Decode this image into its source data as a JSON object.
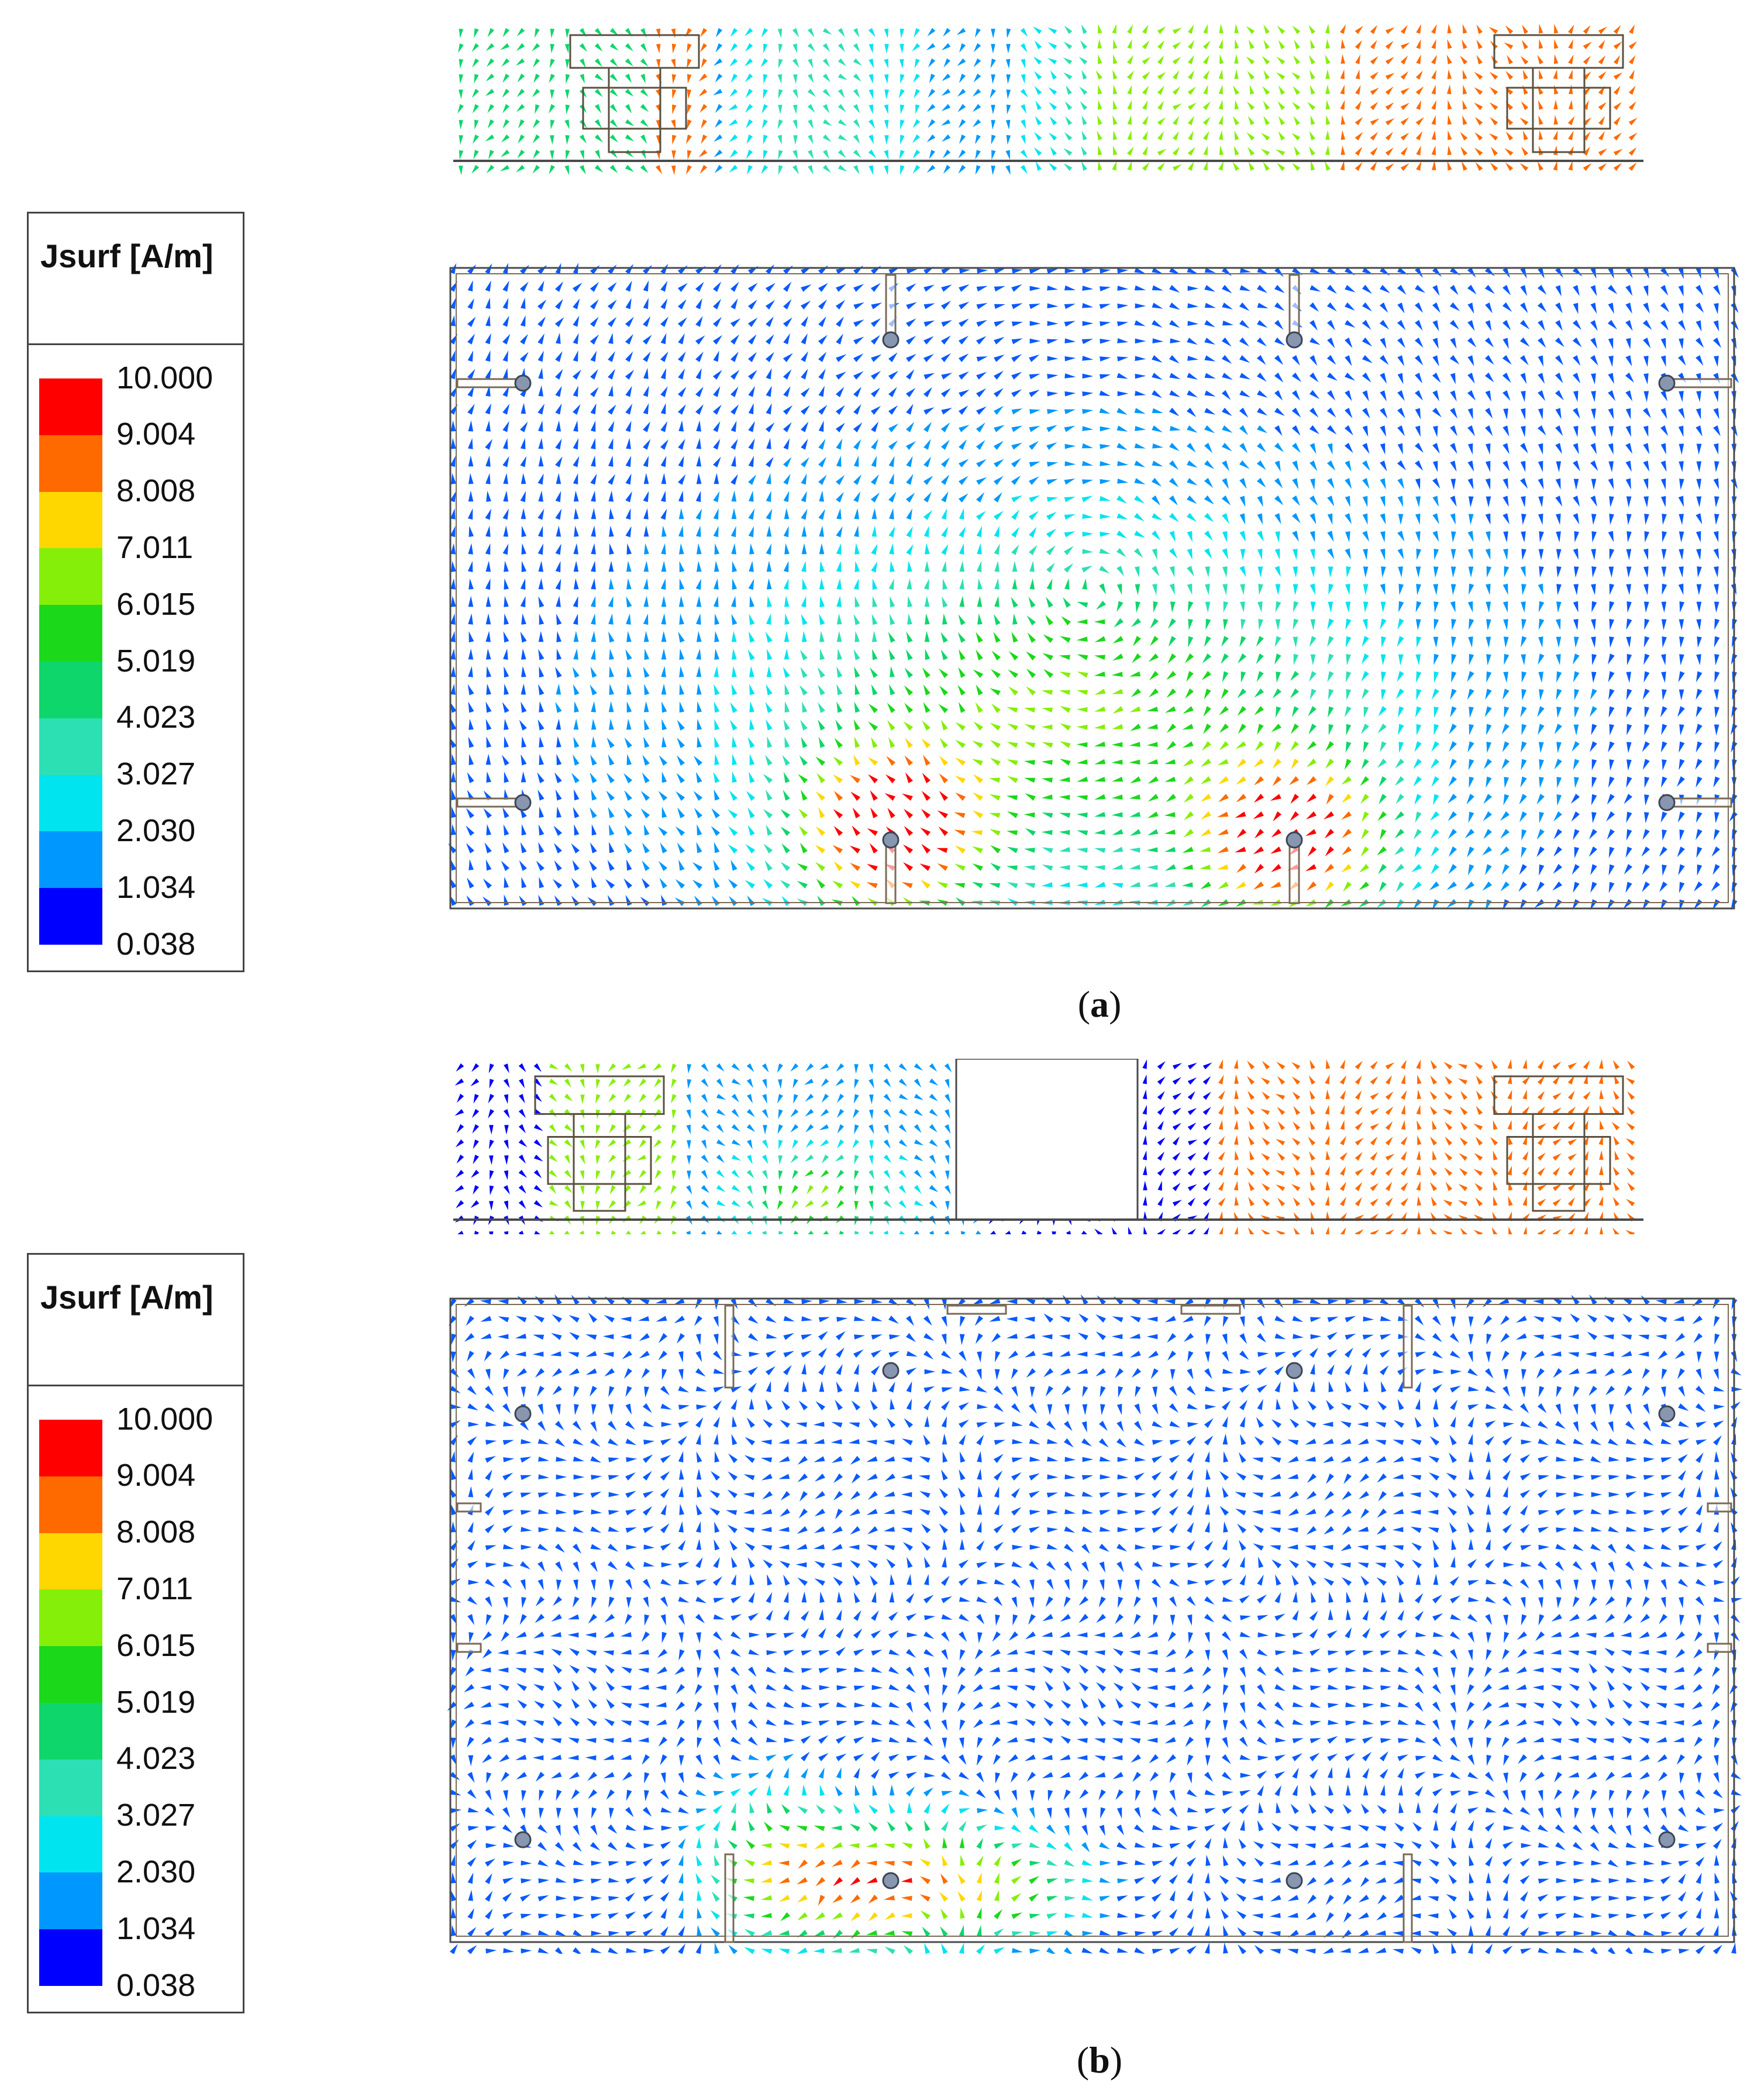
{
  "panels": [
    {
      "caption_letter": "a",
      "legend": {
        "title": "Jsurf [A/m]",
        "values": [
          "10.000",
          "9.004",
          "8.008",
          "7.011",
          "6.015",
          "5.019",
          "4.023",
          "3.027",
          "2.030",
          "1.034",
          "0.038"
        ]
      }
    },
    {
      "caption_letter": "b",
      "legend": {
        "title": "Jsurf [A/m]",
        "values": [
          "10.000",
          "9.004",
          "8.008",
          "7.011",
          "6.015",
          "5.019",
          "4.023",
          "3.027",
          "2.030",
          "1.034",
          "0.038"
        ]
      }
    }
  ],
  "colorscale": [
    "#ff0000",
    "#ff6a00",
    "#ffd700",
    "#86ef0a",
    "#1bd81b",
    "#0fd66b",
    "#2de0b4",
    "#00e4f0",
    "#0098ff",
    "#0a5aff",
    "#0000ff"
  ]
}
